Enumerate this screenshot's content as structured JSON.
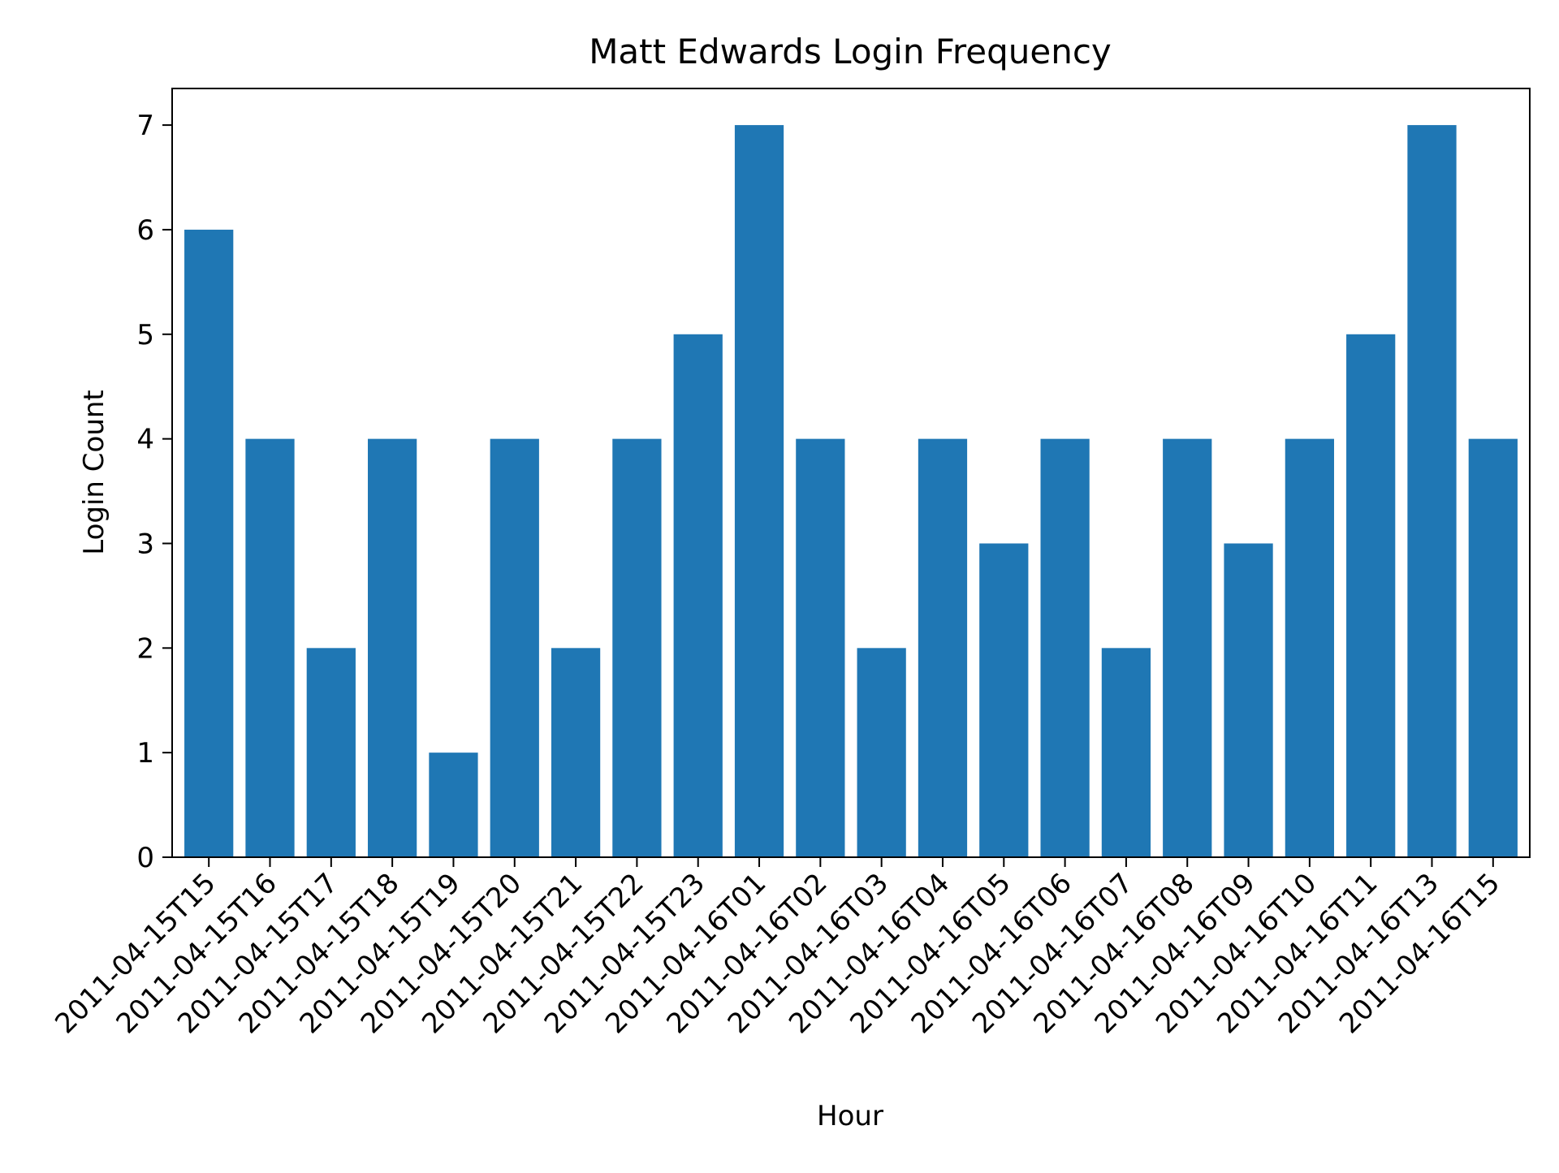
{
  "chart_data": {
    "type": "bar",
    "title": "Matt Edwards Login Frequency",
    "xlabel": "Hour",
    "ylabel": "Login Count",
    "categories": [
      "2011-04-15T15",
      "2011-04-15T16",
      "2011-04-15T17",
      "2011-04-15T18",
      "2011-04-15T19",
      "2011-04-15T20",
      "2011-04-15T21",
      "2011-04-15T22",
      "2011-04-15T23",
      "2011-04-16T01",
      "2011-04-16T02",
      "2011-04-16T03",
      "2011-04-16T04",
      "2011-04-16T05",
      "2011-04-16T06",
      "2011-04-16T07",
      "2011-04-16T08",
      "2011-04-16T09",
      "2011-04-16T10",
      "2011-04-16T11",
      "2011-04-16T13",
      "2011-04-16T15"
    ],
    "values": [
      6,
      4,
      2,
      4,
      1,
      4,
      2,
      4,
      5,
      7,
      4,
      2,
      4,
      3,
      4,
      2,
      4,
      3,
      4,
      5,
      7,
      4
    ],
    "ylim": [
      0,
      7.35
    ],
    "yticks": [
      0,
      1,
      2,
      3,
      4,
      5,
      6,
      7
    ],
    "bar_color": "#1f77b4",
    "grid": false,
    "legend": "none"
  }
}
